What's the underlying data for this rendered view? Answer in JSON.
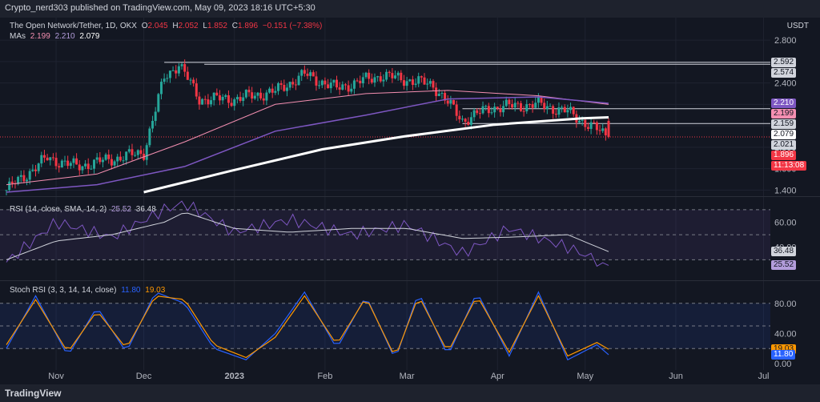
{
  "header": {
    "publish_text": "Crypto_nerd303 published on TradingView.com, May 09, 2023 18:16 UTC+5:30"
  },
  "footer": {
    "brand": "TradingView"
  },
  "price_pane": {
    "symbol": "The Open Network/Tether, 1D, OKX",
    "ohlc": {
      "o_label": "O",
      "o": "2.045",
      "h_label": "H",
      "h": "2.052",
      "l_label": "L",
      "l": "1.852",
      "c_label": "C",
      "c": "1.896",
      "chg": "−0.151 (−7.38%)"
    },
    "mas_label": "MAs",
    "ma_values": [
      "2.199",
      "2.210",
      "2.079"
    ],
    "currency": "USDT",
    "y_ticks": [
      "2.800",
      "2.600",
      "2.400",
      "2.200",
      "2.000",
      "1.800",
      "1.600",
      "1.400"
    ],
    "badges": [
      {
        "text": "2.592",
        "value": 2.592,
        "bg": "#d1d4dc",
        "fg": "#131722"
      },
      {
        "text": "2.574",
        "value": 2.574,
        "bg": "#d1d4dc",
        "fg": "#131722"
      },
      {
        "text": "2.210",
        "value": 2.21,
        "bg": "#7e57c2",
        "fg": "#ffffff"
      },
      {
        "text": "2.199",
        "value": 2.199,
        "bg": "#f48fb1",
        "fg": "#131722"
      },
      {
        "text": "2.159",
        "value": 2.159,
        "bg": "#d1d4dc",
        "fg": "#131722"
      },
      {
        "text": "2.079",
        "value": 2.079,
        "bg": "#ffffff",
        "fg": "#131722"
      },
      {
        "text": "2.021",
        "value": 2.021,
        "bg": "#d1d4dc",
        "fg": "#131722"
      },
      {
        "text": "1.896",
        "value": 1.896,
        "bg": "#f23645",
        "fg": "#ffffff"
      },
      {
        "text": "11:13:08",
        "value": 1.85,
        "bg": "#f23645",
        "fg": "#ffffff"
      }
    ]
  },
  "rsi_pane": {
    "label": "RSI (14, close, SMA, 14, 2)",
    "value1": "25.52",
    "value2": "36.48",
    "y_ticks": [
      "60.00",
      "40.00"
    ],
    "badges": [
      {
        "text": "36.48",
        "value": 36.48,
        "bg": "#d1d4dc",
        "fg": "#131722"
      },
      {
        "text": "25.52",
        "value": 25.52,
        "bg": "#b39ddb",
        "fg": "#131722"
      }
    ]
  },
  "stoch_pane": {
    "label": "Stoch RSI (3, 3, 14, 14, close)",
    "k_value": "11.80",
    "d_value": "19.03",
    "y_ticks": [
      "80.00",
      "40.00",
      "0.00"
    ],
    "badges": [
      {
        "text": "19.03",
        "value": 19.03,
        "bg": "#ff9800",
        "fg": "#131722"
      },
      {
        "text": "11.80",
        "value": 11.8,
        "bg": "#2962ff",
        "fg": "#ffffff"
      }
    ]
  },
  "x_labels": [
    "Nov",
    "Dec",
    "2023",
    "Feb",
    "Mar",
    "Apr",
    "May",
    "Jun",
    "Jul"
  ],
  "colors": {
    "up": "#26a69a",
    "down": "#f23645",
    "ma1": "#f48fb1",
    "ma2": "#7e57c2",
    "ma3": "#ffffff",
    "rsi": "#7e57c2",
    "rsi_sma": "#d1d4dc",
    "stoch_k": "#2962ff",
    "stoch_d": "#ff9800"
  },
  "chart_data": [
    {
      "type": "candlestick",
      "title": "The Open Network/Tether, 1D, OKX",
      "x": [
        "2022-10-15",
        "2022-10-29",
        "2022-11-08",
        "2022-11-22",
        "2022-12-01",
        "2022-12-08",
        "2022-12-13",
        "2022-12-20",
        "2023-01-01",
        "2023-01-15",
        "2023-01-25",
        "2023-02-05",
        "2023-02-20",
        "2023-03-01",
        "2023-03-10",
        "2023-03-20",
        "2023-03-30",
        "2023-04-15",
        "2023-04-25",
        "2023-05-09"
      ],
      "close": [
        1.4,
        1.7,
        1.62,
        1.7,
        1.75,
        2.45,
        2.58,
        2.25,
        2.25,
        2.32,
        2.48,
        2.35,
        2.47,
        2.43,
        2.38,
        2.05,
        2.17,
        2.2,
        2.13,
        1.896
      ],
      "ylim": [
        1.35,
        2.95
      ],
      "horizontal_levels": [
        2.592,
        2.574,
        2.159,
        2.021
      ],
      "series": [
        {
          "name": "MA 2.199",
          "x": [
            "2022-10-15",
            "2022-11-15",
            "2022-12-15",
            "2023-01-15",
            "2023-02-15",
            "2023-03-15",
            "2023-04-15",
            "2023-05-09"
          ],
          "values": [
            1.45,
            1.55,
            1.85,
            2.2,
            2.3,
            2.33,
            2.28,
            2.199
          ]
        },
        {
          "name": "MA 2.210",
          "x": [
            "2022-10-15",
            "2022-11-15",
            "2022-12-15",
            "2023-01-15",
            "2023-02-15",
            "2023-03-15",
            "2023-04-15",
            "2023-05-09"
          ],
          "values": [
            1.38,
            1.45,
            1.62,
            1.95,
            2.1,
            2.25,
            2.27,
            2.21
          ]
        },
        {
          "name": "MA 2.079",
          "x": [
            "2022-12-01",
            "2022-12-31",
            "2023-01-31",
            "2023-02-28",
            "2023-03-31",
            "2023-04-30",
            "2023-05-09"
          ],
          "values": [
            1.38,
            1.58,
            1.78,
            1.9,
            2.01,
            2.07,
            2.079
          ]
        }
      ]
    },
    {
      "type": "line",
      "title": "RSI (14, close, SMA, 14, 2)",
      "x": [
        "2022-10-15",
        "2022-11-01",
        "2022-11-20",
        "2022-12-08",
        "2022-12-15",
        "2023-01-01",
        "2023-01-20",
        "2023-02-10",
        "2023-03-01",
        "2023-03-20",
        "2023-04-05",
        "2023-04-25",
        "2023-05-09"
      ],
      "ylim": [
        20,
        75
      ],
      "series": [
        {
          "name": "RSI",
          "values": [
            28,
            60,
            48,
            70,
            75,
            52,
            62,
            50,
            58,
            35,
            55,
            40,
            25.52
          ]
        },
        {
          "name": "SMA",
          "values": [
            30,
            45,
            50,
            60,
            68,
            55,
            52,
            55,
            55,
            47,
            48,
            50,
            36.48
          ]
        }
      ]
    },
    {
      "type": "line",
      "title": "Stoch RSI (3, 3, 14, 14, close)",
      "x": [
        "2022-10-15",
        "2022-10-25",
        "2022-11-05",
        "2022-11-15",
        "2022-11-25",
        "2022-12-05",
        "2022-12-15",
        "2022-12-25",
        "2023-01-05",
        "2023-01-15",
        "2023-01-25",
        "2023-02-05",
        "2023-02-15",
        "2023-02-25",
        "2023-03-05",
        "2023-03-15",
        "2023-03-25",
        "2023-04-05",
        "2023-04-15",
        "2023-04-25",
        "2023-05-05",
        "2023-05-09"
      ],
      "ylim": [
        0,
        100
      ],
      "series": [
        {
          "name": "K",
          "values": [
            20,
            90,
            10,
            75,
            15,
            95,
            80,
            20,
            5,
            40,
            95,
            20,
            90,
            5,
            95,
            10,
            95,
            10,
            95,
            5,
            25,
            11.8
          ]
        },
        {
          "name": "D",
          "values": [
            25,
            85,
            15,
            70,
            20,
            90,
            85,
            25,
            8,
            35,
            90,
            25,
            88,
            8,
            90,
            15,
            90,
            15,
            90,
            10,
            28,
            19.03
          ]
        }
      ]
    }
  ]
}
